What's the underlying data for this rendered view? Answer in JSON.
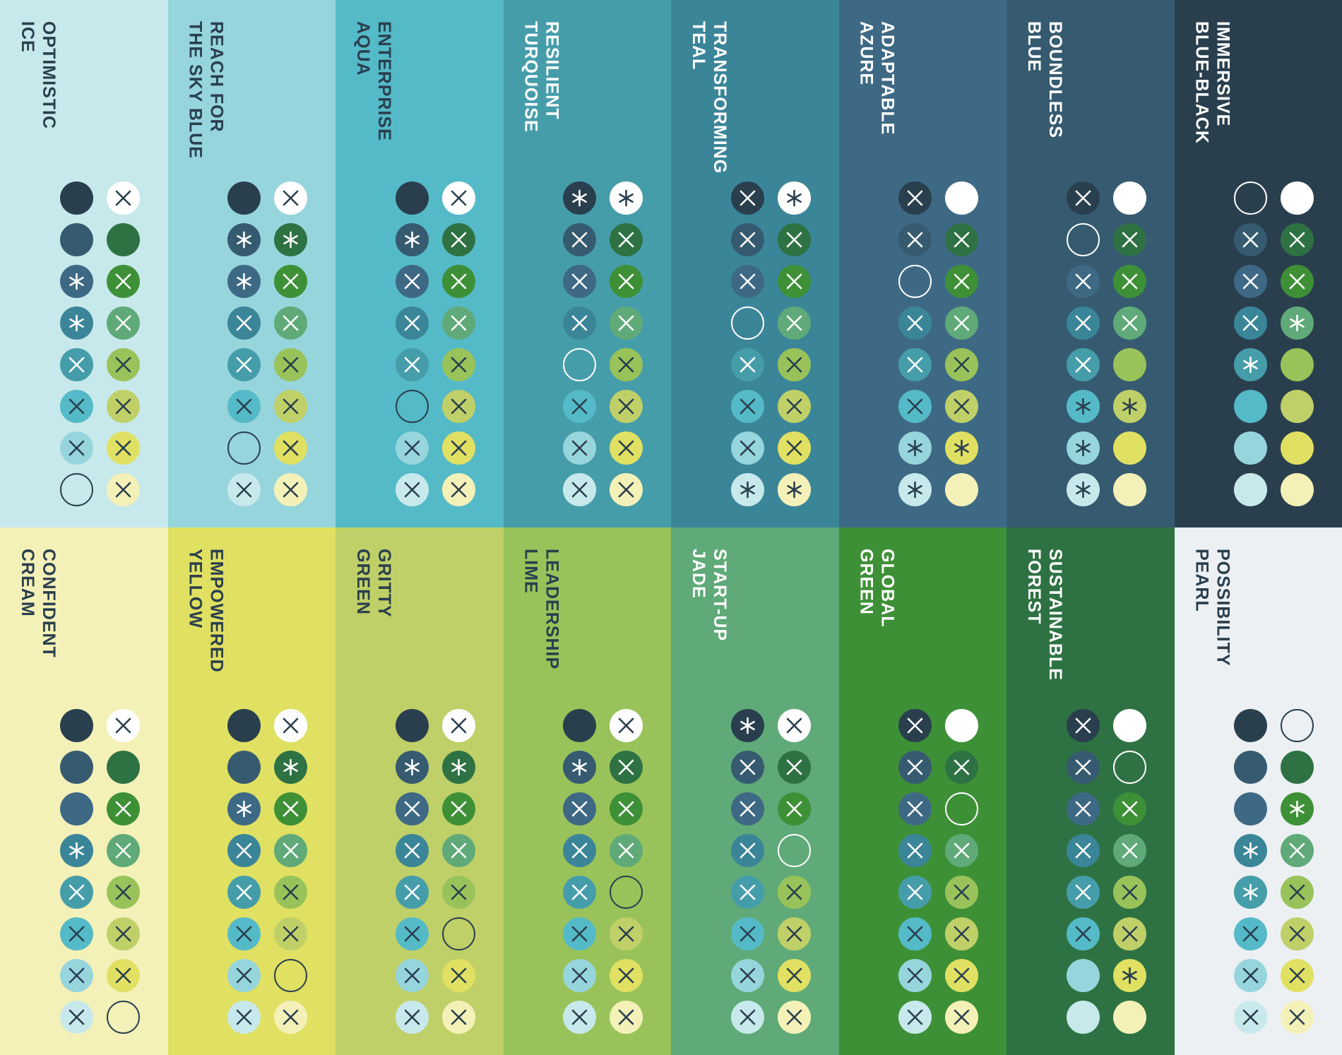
{
  "colors": {
    "blue_black": "#2a3f4e",
    "boundless_blue": "#365b70",
    "adaptable_azure": "#3e6985",
    "transforming_teal": "#3b8599",
    "resilient_turquoise": "#469daa",
    "enterprise_aqua": "#55bac7",
    "reach_for_the_sky_blue": "#97d5dd",
    "optimistic_ice": "#c8e9eb",
    "sustainable_forest": "#2e7243",
    "global_green": "#3e9037",
    "start_up_jade": "#5faa78",
    "leadership_lime": "#99c35a",
    "gritty_green": "#c0d068",
    "empowered_yellow": "#e0e063",
    "confident_cream": "#f4f1b8",
    "possibility_pearl": "#ecf0f3",
    "white": "#ffffff"
  },
  "legend": {
    "x": "cross icon on swatch",
    "*": "asterisk icon on swatch",
    "o": "outline ring (swatch matches background)",
    "-": "plain swatch"
  },
  "palette": {
    "left_column": [
      "blue_black",
      "boundless_blue",
      "adaptable_azure",
      "transforming_teal",
      "resilient_turquoise",
      "enterprise_aqua",
      "reach_for_the_sky_blue",
      "optimistic_ice"
    ],
    "right_column": [
      "white",
      "sustainable_forest",
      "global_green",
      "start_up_jade",
      "leadership_lime",
      "gritty_green",
      "empowered_yellow",
      "confident_cream"
    ],
    "right_column_pearl": [
      "blue_black",
      "boundless_blue",
      "adaptable_azure",
      "transforming_teal",
      "resilient_turquoise",
      "enterprise_aqua",
      "reach_for_the_sky_blue",
      "optimistic_ice"
    ]
  },
  "panels": [
    {
      "id": "optimistic-ice",
      "title": "OPTIMISTIC\nICE",
      "bg": "optimistic_ice",
      "text": "blue_black",
      "left": [
        "-",
        "-",
        "*",
        "*",
        "x",
        "x",
        "x",
        "o"
      ],
      "right": [
        "x",
        "-",
        "x",
        "x",
        "x",
        "x",
        "x",
        "x"
      ]
    },
    {
      "id": "reach-for-the-sky-blue",
      "title": "REACH FOR\nTHE SKY BLUE",
      "bg": "reach_for_the_sky_blue",
      "text": "blue_black",
      "left": [
        "-",
        "*",
        "*",
        "x",
        "x",
        "x",
        "o",
        "x"
      ],
      "right": [
        "x",
        "*",
        "x",
        "x",
        "x",
        "x",
        "x",
        "x"
      ]
    },
    {
      "id": "enterprise-aqua",
      "title": "ENTERPRISE\nAQUA",
      "bg": "enterprise_aqua",
      "text": "blue_black",
      "left": [
        "-",
        "*",
        "x",
        "x",
        "x",
        "o",
        "x",
        "x"
      ],
      "right": [
        "x",
        "x",
        "x",
        "x",
        "x",
        "x",
        "x",
        "x"
      ]
    },
    {
      "id": "resilient-turquoise",
      "title": "RESILIENT\nTURQUOISE",
      "bg": "resilient_turquoise",
      "text": "white",
      "left": [
        "*",
        "x",
        "x",
        "x",
        "o",
        "x",
        "x",
        "x"
      ],
      "right": [
        "*",
        "x",
        "x",
        "x",
        "x",
        "x",
        "x",
        "x"
      ]
    },
    {
      "id": "transforming-teal",
      "title": "TRANSFORMING\nTEAL",
      "bg": "transforming_teal",
      "text": "white",
      "left": [
        "x",
        "x",
        "x",
        "o",
        "x",
        "x",
        "x",
        "*"
      ],
      "right": [
        "*",
        "x",
        "x",
        "x",
        "x",
        "x",
        "x",
        "*"
      ]
    },
    {
      "id": "adaptable-azure",
      "title": "ADAPTABLE\nAZURE",
      "bg": "adaptable_azure",
      "text": "white",
      "left": [
        "x",
        "x",
        "o",
        "x",
        "x",
        "x",
        "*",
        "*"
      ],
      "right": [
        "-",
        "x",
        "x",
        "x",
        "x",
        "x",
        "*",
        "-"
      ]
    },
    {
      "id": "boundless-blue",
      "title": "BOUNDLESS\nBLUE",
      "bg": "boundless_blue",
      "text": "white",
      "left": [
        "x",
        "o",
        "x",
        "x",
        "x",
        "*",
        "*",
        "*"
      ],
      "right": [
        "-",
        "x",
        "x",
        "x",
        "-",
        "*",
        "-",
        "-"
      ]
    },
    {
      "id": "immersive-blue-black",
      "title": "IMMERSIVE\nBLUE-BLACK",
      "bg": "blue_black",
      "text": "white",
      "left": [
        "o",
        "x",
        "x",
        "x",
        "*",
        "-",
        "-",
        "-"
      ],
      "right": [
        "-",
        "x",
        "x",
        "*",
        "-",
        "-",
        "-",
        "-"
      ]
    },
    {
      "id": "confident-cream",
      "title": "CONFIDENT\nCREAM",
      "bg": "confident_cream",
      "text": "blue_black",
      "left": [
        "-",
        "-",
        "-",
        "*",
        "x",
        "x",
        "x",
        "x"
      ],
      "right": [
        "x",
        "-",
        "x",
        "x",
        "x",
        "x",
        "x",
        "o"
      ]
    },
    {
      "id": "empowered-yellow",
      "title": "EMPOWERED\nYELLOW",
      "bg": "empowered_yellow",
      "text": "blue_black",
      "left": [
        "-",
        "-",
        "*",
        "x",
        "x",
        "x",
        "x",
        "x"
      ],
      "right": [
        "x",
        "*",
        "x",
        "x",
        "x",
        "x",
        "o",
        "x"
      ]
    },
    {
      "id": "gritty-green",
      "title": "GRITTY\nGREEN",
      "bg": "gritty_green",
      "text": "blue_black",
      "left": [
        "-",
        "*",
        "x",
        "x",
        "x",
        "x",
        "x",
        "x"
      ],
      "right": [
        "x",
        "*",
        "x",
        "x",
        "x",
        "o",
        "x",
        "x"
      ]
    },
    {
      "id": "leadership-lime",
      "title": "LEADERSHIP\nLIME",
      "bg": "leadership_lime",
      "text": "blue_black",
      "left": [
        "-",
        "*",
        "x",
        "x",
        "x",
        "x",
        "x",
        "x"
      ],
      "right": [
        "x",
        "x",
        "x",
        "x",
        "o",
        "x",
        "x",
        "x"
      ]
    },
    {
      "id": "start-up-jade",
      "title": "START-UP\nJADE",
      "bg": "start_up_jade",
      "text": "white",
      "left": [
        "*",
        "x",
        "x",
        "x",
        "x",
        "x",
        "x",
        "x"
      ],
      "right": [
        "x",
        "x",
        "x",
        "o",
        "x",
        "x",
        "x",
        "x"
      ]
    },
    {
      "id": "global-green",
      "title": "GLOBAL\nGREEN",
      "bg": "global_green",
      "text": "white",
      "left": [
        "x",
        "x",
        "x",
        "x",
        "x",
        "x",
        "x",
        "x"
      ],
      "right": [
        "-",
        "x",
        "o",
        "x",
        "x",
        "x",
        "x",
        "x"
      ]
    },
    {
      "id": "sustainable-forest",
      "title": "SUSTAINABLE\nFOREST",
      "bg": "sustainable_forest",
      "text": "white",
      "left": [
        "x",
        "x",
        "x",
        "x",
        "x",
        "x",
        "-",
        "-"
      ],
      "right": [
        "-",
        "o",
        "x",
        "x",
        "x",
        "x",
        "*",
        "-"
      ]
    },
    {
      "id": "possibility-pearl",
      "title": "POSSIBILITY\nPEARL",
      "bg": "possibility_pearl",
      "text": "blue_black",
      "left": [
        "-",
        "-",
        "-",
        "*",
        "*",
        "x",
        "x",
        "x"
      ],
      "right": [
        "o",
        "-",
        "*",
        "x",
        "x",
        "x",
        "x",
        "x"
      ]
    }
  ]
}
